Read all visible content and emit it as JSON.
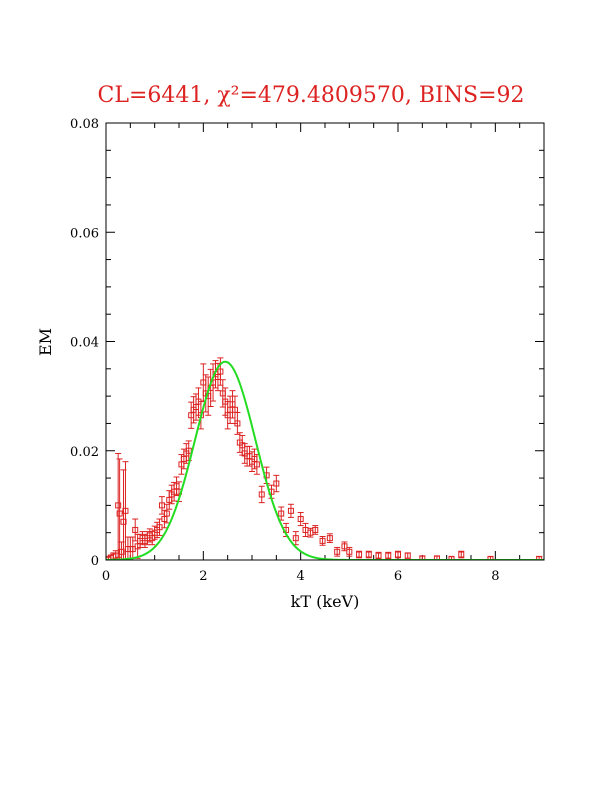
{
  "chart_data": {
    "type": "scatter",
    "title": "CL=6441, χ²=479.4809570, BINS=92",
    "xlabel": "kT (keV)",
    "ylabel": "EM",
    "xlim": [
      0,
      9
    ],
    "ylim": [
      0,
      0.08
    ],
    "x_ticks": [
      0,
      2,
      4,
      6,
      8
    ],
    "x_tick_labels": [
      "0",
      "2",
      "4",
      "6",
      "8"
    ],
    "y_ticks": [
      0,
      0.02,
      0.04,
      0.06,
      0.08
    ],
    "y_tick_labels": [
      "0",
      "0.02",
      "0.04",
      "0.06",
      "0.08"
    ],
    "grid": false,
    "colors": {
      "data": "#dd2222",
      "model": "#22dd22",
      "title": "#dd2222"
    },
    "series": [
      {
        "kind": "points-with-errorbars",
        "x": [
          0.05,
          0.1,
          0.15,
          0.2,
          0.25,
          0.28,
          0.32,
          0.36,
          0.4,
          0.45,
          0.5,
          0.55,
          0.6,
          0.65,
          0.7,
          0.75,
          0.8,
          0.85,
          0.9,
          0.95,
          1.0,
          1.05,
          1.1,
          1.15,
          1.2,
          1.25,
          1.3,
          1.35,
          1.4,
          1.45,
          1.5,
          1.55,
          1.6,
          1.65,
          1.7,
          1.75,
          1.8,
          1.85,
          1.9,
          1.95,
          2.0,
          2.05,
          2.1,
          2.15,
          2.2,
          2.25,
          2.3,
          2.35,
          2.4,
          2.45,
          2.5,
          2.55,
          2.6,
          2.65,
          2.7,
          2.75,
          2.8,
          2.85,
          2.9,
          2.95,
          3.0,
          3.05,
          3.1,
          3.2,
          3.3,
          3.4,
          3.5,
          3.6,
          3.7,
          3.8,
          3.9,
          4.0,
          4.1,
          4.2,
          4.3,
          4.45,
          4.6,
          4.75,
          4.9,
          5.0,
          5.2,
          5.4,
          5.6,
          5.8,
          6.0,
          6.2,
          6.5,
          6.8,
          7.1,
          7.3,
          7.9,
          8.9
        ],
        "y": [
          0.0002,
          0.0004,
          0.0006,
          0.0008,
          0.01,
          0.0085,
          0.0015,
          0.007,
          0.009,
          0.002,
          0.002,
          0.002,
          0.0055,
          0.0025,
          0.0035,
          0.004,
          0.0035,
          0.004,
          0.0045,
          0.004,
          0.005,
          0.0055,
          0.006,
          0.01,
          0.0075,
          0.0085,
          0.011,
          0.012,
          0.0125,
          0.0135,
          0.0125,
          0.0175,
          0.0185,
          0.0195,
          0.02,
          0.0265,
          0.0275,
          0.028,
          0.029,
          0.0265,
          0.0325,
          0.0305,
          0.03,
          0.0315,
          0.0325,
          0.034,
          0.0335,
          0.0345,
          0.0305,
          0.029,
          0.0265,
          0.0275,
          0.0285,
          0.0275,
          0.025,
          0.0215,
          0.021,
          0.0195,
          0.019,
          0.019,
          0.018,
          0.0185,
          0.0175,
          0.012,
          0.0155,
          0.0125,
          0.014,
          0.0085,
          0.0055,
          0.009,
          0.004,
          0.0075,
          0.0055,
          0.005,
          0.0055,
          0.0035,
          0.004,
          0.0015,
          0.0025,
          0.0015,
          0.001,
          0.001,
          0.0008,
          0.0008,
          0.001,
          0.0008,
          0.0003,
          0.0003,
          0.0002,
          0.001,
          0.0002,
          0.0002
        ],
        "err": [
          0.0003,
          0.0005,
          0.0007,
          0.0009,
          0.0095,
          0.01,
          0.0018,
          0.0095,
          0.009,
          0.0022,
          0.0022,
          0.0022,
          0.002,
          0.0022,
          0.0012,
          0.0012,
          0.0012,
          0.0012,
          0.0012,
          0.0012,
          0.0012,
          0.0014,
          0.0015,
          0.0016,
          0.0016,
          0.0017,
          0.0017,
          0.0017,
          0.0017,
          0.0017,
          0.0018,
          0.0018,
          0.0018,
          0.0018,
          0.0018,
          0.0024,
          0.0024,
          0.0024,
          0.0025,
          0.0025,
          0.0034,
          0.0034,
          0.0035,
          0.0034,
          0.0034,
          0.0025,
          0.0025,
          0.0025,
          0.0025,
          0.0025,
          0.0025,
          0.0025,
          0.0025,
          0.0025,
          0.002,
          0.0018,
          0.0018,
          0.0018,
          0.0018,
          0.0018,
          0.0018,
          0.0018,
          0.0018,
          0.0015,
          0.0015,
          0.0012,
          0.0015,
          0.0012,
          0.0012,
          0.0012,
          0.0012,
          0.0012,
          0.0012,
          0.0008,
          0.0008,
          0.0008,
          0.0008,
          0.0008,
          0.0008,
          0.0008,
          0.0006,
          0.0006,
          0.0006,
          0.0006,
          0.0006,
          0.0005,
          0.0004,
          0.0004,
          0.0004,
          0.0006,
          0.0004,
          0.0004
        ]
      },
      {
        "kind": "model-curve",
        "shape": "gaussian",
        "peak_x": 2.45,
        "peak_y": 0.0363,
        "sigma": 0.62,
        "x_range": [
          0,
          9
        ]
      }
    ]
  }
}
